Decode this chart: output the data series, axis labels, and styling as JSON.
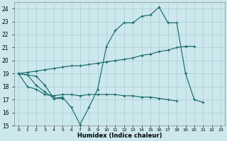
{
  "xlabel": "Humidex (Indice chaleur)",
  "background_color": "#cce8ec",
  "line_color": "#1a6b6b",
  "grid_color": "#aacdd4",
  "line1_x": [
    0,
    1,
    2,
    3,
    4,
    5,
    6,
    7,
    8,
    9,
    10,
    11,
    12,
    13,
    14,
    15,
    16,
    17,
    18,
    19,
    20,
    21,
    22,
    23
  ],
  "line1_y": [
    19.0,
    18.9,
    18.8,
    18.1,
    17.1,
    17.2,
    16.4,
    15.1,
    16.4,
    17.8,
    21.1,
    22.3,
    22.9,
    22.9,
    23.4,
    23.5,
    24.1,
    22.9,
    22.9,
    19.0,
    17.0,
    16.8,
    null,
    null
  ],
  "line2_x": [
    0,
    1,
    2,
    3,
    4,
    5
  ],
  "line2_y": [
    19.0,
    18.9,
    18.1,
    17.6,
    17.1,
    17.1
  ],
  "line3_x": [
    0,
    1,
    2,
    3,
    4,
    5,
    6,
    7,
    8,
    9,
    10,
    11,
    12,
    13,
    14,
    15,
    16,
    17,
    18,
    19,
    20
  ],
  "line3_y": [
    19.0,
    19.1,
    19.2,
    19.3,
    19.4,
    19.5,
    19.6,
    19.6,
    19.7,
    19.8,
    19.9,
    20.0,
    20.1,
    20.2,
    20.4,
    20.5,
    20.7,
    20.8,
    21.0,
    21.1,
    21.1
  ],
  "line4_x": [
    0,
    1,
    2,
    3,
    4,
    5,
    6,
    7,
    8,
    9,
    10,
    11,
    12,
    13,
    14,
    15,
    16,
    17,
    18
  ],
  "line4_y": [
    19.0,
    18.0,
    17.8,
    17.4,
    17.3,
    17.4,
    17.4,
    17.3,
    17.4,
    17.4,
    17.4,
    17.4,
    17.3,
    17.3,
    17.2,
    17.2,
    17.1,
    17.0,
    16.9
  ],
  "ylim": [
    15,
    24.5
  ],
  "yticks": [
    15,
    16,
    17,
    18,
    19,
    20,
    21,
    22,
    23,
    24
  ],
  "xlim": [
    -0.5,
    23.5
  ],
  "xticks": [
    0,
    1,
    2,
    3,
    4,
    5,
    6,
    7,
    8,
    9,
    10,
    11,
    12,
    13,
    14,
    15,
    16,
    17,
    18,
    19,
    20,
    21,
    22,
    23
  ]
}
